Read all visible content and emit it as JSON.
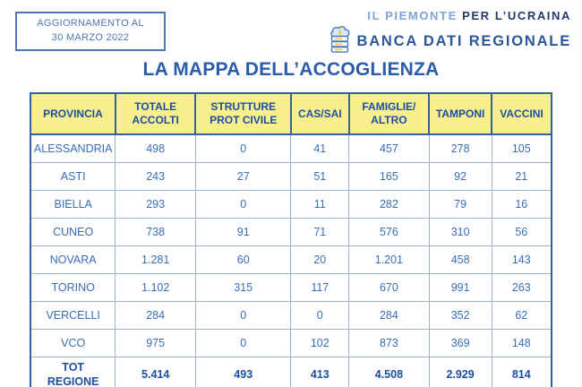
{
  "update_box": {
    "line1": "AGGIORNAMENTO AL",
    "line2": "30 MARZO 2022"
  },
  "logo": {
    "tagline_light": "IL PIEMONTE",
    "tagline_bold": "PER L’UCRAINA",
    "name": "BANCA DATI REGIONALE",
    "icon": "cloud-database-icon"
  },
  "title": "LA MAPPA DELL’ACCOGLIENZA",
  "colors": {
    "title_blue": "#2b5cab",
    "header_yellow": "#f9ef8d",
    "header_text_blue": "#1d4fa1",
    "cell_text_blue": "#3a6db8",
    "grid_light_blue": "#9db2cf",
    "border_blue": "#35629f",
    "update_box_blue": "#4d77b0",
    "logo_light_blue": "#7fa1d4",
    "logo_navy": "#24396b",
    "icon_yellow": "#f3cf3e"
  },
  "chart_data": {
    "type": "table",
    "title": "LA MAPPA DELL’ACCOGLIENZA",
    "columns": [
      "PROVINCIA",
      "TOTALE\nACCOLTI",
      "STRUTTURE\nPROT CIVILE",
      "CAS/SAI",
      "FAMIGLIE/\nALTRO",
      "TAMPONI",
      "VACCINI"
    ],
    "rows": [
      {
        "provincia": "ALESSANDRIA",
        "values": [
          "498",
          "0",
          "41",
          "457",
          "278",
          "105"
        ]
      },
      {
        "provincia": "ASTI",
        "values": [
          "243",
          "27",
          "51",
          "165",
          "92",
          "21"
        ]
      },
      {
        "provincia": "BIELLA",
        "values": [
          "293",
          "0",
          "11",
          "282",
          "79",
          "16"
        ]
      },
      {
        "provincia": "CUNEO",
        "values": [
          "738",
          "91",
          "71",
          "576",
          "310",
          "56"
        ]
      },
      {
        "provincia": "NOVARA",
        "values": [
          "1.281",
          "60",
          "20",
          "1.201",
          "458",
          "143"
        ]
      },
      {
        "provincia": "TORINO",
        "values": [
          "1.102",
          "315",
          "117",
          "670",
          "991",
          "263"
        ]
      },
      {
        "provincia": "VERCELLI",
        "values": [
          "284",
          "0",
          "0",
          "284",
          "352",
          "62"
        ]
      },
      {
        "provincia": "VCO",
        "values": [
          "975",
          "0",
          "102",
          "873",
          "369",
          "148"
        ]
      }
    ],
    "total_row": {
      "provincia": "TOT\nREGIONE",
      "values": [
        "5.414",
        "493",
        "413",
        "4.508",
        "2.929",
        "814"
      ]
    }
  }
}
